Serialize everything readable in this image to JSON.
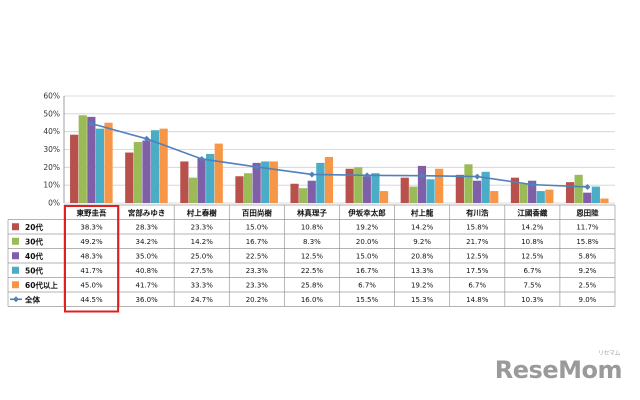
{
  "chart_data": {
    "type": "bar",
    "categories": [
      "東野圭吾",
      "宮部みゆき",
      "村上春樹",
      "百田尚樹",
      "林真理子",
      "伊坂幸太郎",
      "村上龍",
      "有川浩",
      "江國香織",
      "恩田陸"
    ],
    "ylim": [
      0,
      60
    ],
    "yticks": [
      "0%",
      "10%",
      "20%",
      "30%",
      "40%",
      "50%",
      "60%"
    ],
    "grid": true,
    "legend": "data-table",
    "series": [
      {
        "name": "20代",
        "color": "#b8504b",
        "kind": "bar",
        "values": [
          38.3,
          28.3,
          23.3,
          15.0,
          10.8,
          19.2,
          14.2,
          15.8,
          14.2,
          11.7
        ],
        "labels": [
          "38.3%",
          "28.3%",
          "23.3%",
          "15.0%",
          "10.8%",
          "19.2%",
          "14.2%",
          "15.8%",
          "14.2%",
          "11.7%"
        ]
      },
      {
        "name": "30代",
        "color": "#9bbb59",
        "kind": "bar",
        "values": [
          49.2,
          34.2,
          14.2,
          16.7,
          8.3,
          20.0,
          9.2,
          21.7,
          10.8,
          15.8
        ],
        "labels": [
          "49.2%",
          "34.2%",
          "14.2%",
          "16.7%",
          "8.3%",
          "20.0%",
          "9.2%",
          "21.7%",
          "10.8%",
          "15.8%"
        ]
      },
      {
        "name": "40代",
        "color": "#7f5fa8",
        "kind": "bar",
        "values": [
          48.3,
          35.0,
          25.0,
          22.5,
          12.5,
          15.0,
          20.8,
          12.5,
          12.5,
          5.8
        ],
        "labels": [
          "48.3%",
          "35.0%",
          "25.0%",
          "22.5%",
          "12.5%",
          "15.0%",
          "20.8%",
          "12.5%",
          "12.5%",
          "5.8%"
        ]
      },
      {
        "name": "50代",
        "color": "#4bacc6",
        "kind": "bar",
        "values": [
          41.7,
          40.8,
          27.5,
          23.3,
          22.5,
          16.7,
          13.3,
          17.5,
          6.7,
          9.2
        ],
        "labels": [
          "41.7%",
          "40.8%",
          "27.5%",
          "23.3%",
          "22.5%",
          "16.7%",
          "13.3%",
          "17.5%",
          "6.7%",
          "9.2%"
        ]
      },
      {
        "name": "60代以上",
        "color": "#f79646",
        "kind": "bar",
        "values": [
          45.0,
          41.7,
          33.3,
          23.3,
          25.8,
          6.7,
          19.2,
          6.7,
          7.5,
          2.5
        ],
        "labels": [
          "45.0%",
          "41.7%",
          "33.3%",
          "23.3%",
          "25.8%",
          "6.7%",
          "19.2%",
          "6.7%",
          "7.5%",
          "2.5%"
        ]
      },
      {
        "name": "全体",
        "color": "#4f81bd",
        "kind": "line",
        "values": [
          44.5,
          36.0,
          24.7,
          20.2,
          16.0,
          15.5,
          15.3,
          14.8,
          10.3,
          9.0
        ],
        "labels": [
          "44.5%",
          "36.0%",
          "24.7%",
          "20.2%",
          "16.0%",
          "15.5%",
          "15.3%",
          "14.8%",
          "10.3%",
          "9.0%"
        ]
      }
    ],
    "highlight_category": "東野圭吾",
    "highlight_color": "#e02020"
  },
  "watermark": {
    "text": "ReseMom",
    "small": "リセマム"
  }
}
